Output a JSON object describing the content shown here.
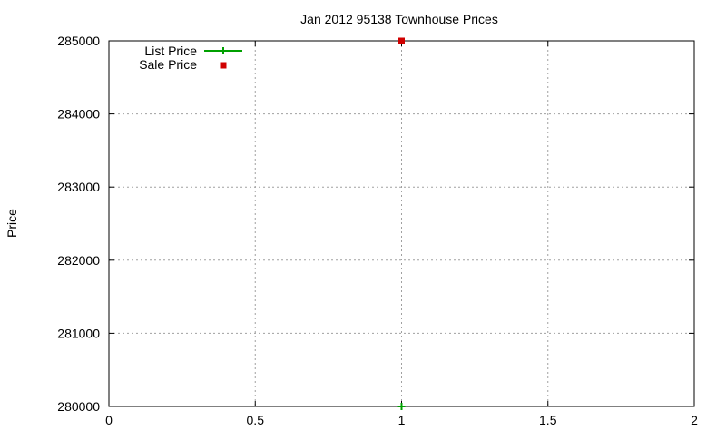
{
  "chart_data": {
    "type": "scatter",
    "title": "Jan 2012 95138 Townhouse Prices",
    "xlabel": "",
    "ylabel": "Price",
    "xlim": [
      0,
      2
    ],
    "ylim": [
      280000,
      285000
    ],
    "xticks": [
      "0",
      "0.5",
      "1",
      "1.5",
      "2"
    ],
    "yticks": [
      "280000",
      "281000",
      "282000",
      "283000",
      "284000",
      "285000"
    ],
    "grid": true,
    "legend_position": "top-left",
    "series": [
      {
        "name": "List Price",
        "marker": "plus",
        "line": true,
        "color": "#00a000",
        "points": [
          {
            "x": 1,
            "y": 280000
          }
        ]
      },
      {
        "name": "Sale Price",
        "marker": "square",
        "line": false,
        "color": "#d00000",
        "points": [
          {
            "x": 1,
            "y": 285000
          }
        ]
      }
    ]
  }
}
